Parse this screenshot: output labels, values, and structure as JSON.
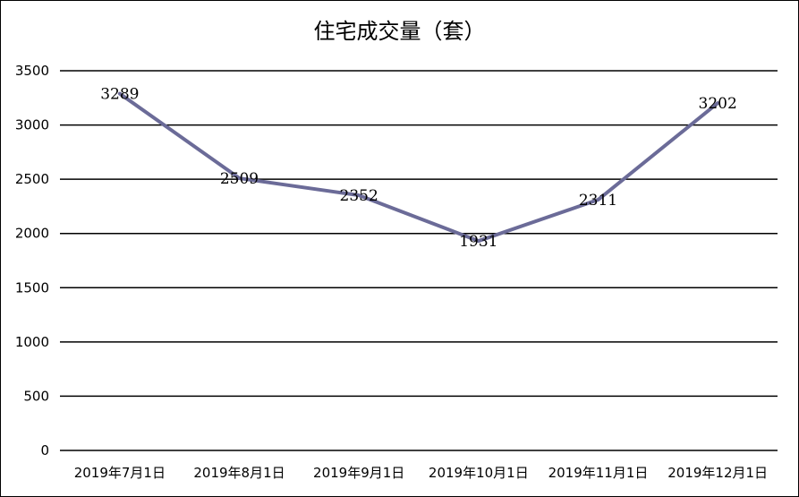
{
  "chart_data": {
    "type": "line",
    "title": "住宅成交量（套）",
    "categories": [
      "2019年7月1日",
      "2019年8月1日",
      "2019年9月1日",
      "2019年10月1日",
      "2019年11月1日",
      "2019年12月1日"
    ],
    "series": [
      {
        "values": [
          3289,
          2509,
          2352,
          1931,
          2311,
          3202
        ]
      }
    ],
    "ylim": [
      0,
      3500
    ],
    "yticks": [
      0,
      500,
      1000,
      1500,
      2000,
      2500,
      3000,
      3500
    ],
    "grid": true,
    "line_color": "#6b6b98"
  }
}
